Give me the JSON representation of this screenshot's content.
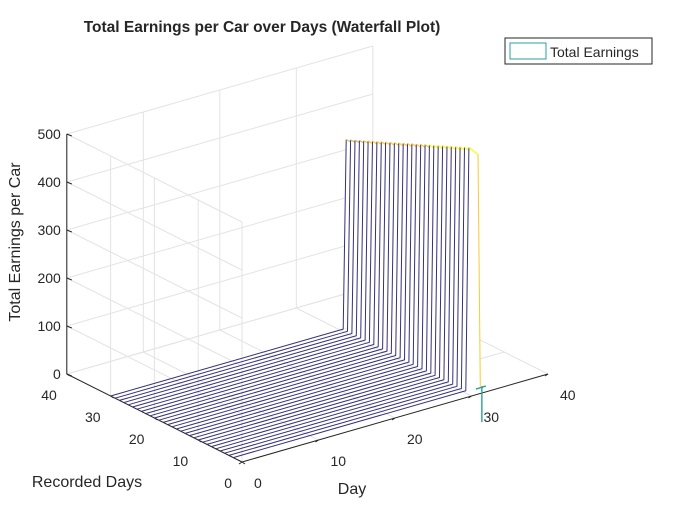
{
  "chart_data": {
    "type": "waterfall",
    "title": "Total Earnings per Car over Days (Waterfall Plot)",
    "xlabel": "Day",
    "ylabel": "Recorded Days",
    "zlabel": "Total Earnings per Car",
    "xticks": [
      "0",
      "10",
      "20",
      "30",
      "40"
    ],
    "yticks": [
      "0",
      "10",
      "20",
      "30",
      "40"
    ],
    "zticks": [
      "0",
      "100",
      "200",
      "300",
      "400",
      "500"
    ],
    "xlim": [
      0,
      40
    ],
    "ylim": [
      0,
      40
    ],
    "zlim": [
      0,
      500
    ],
    "legend": {
      "entries": [
        "Total Earnings"
      ],
      "location": "top-right"
    },
    "grid": true,
    "colormap": [
      "#352a87",
      "#0f5cdd",
      "#1481d6",
      "#06a4ca",
      "#2eb7a4",
      "#87bf77",
      "#d1bb59",
      "#fec832",
      "#f9fb0e"
    ],
    "series": {
      "recorded_days": [
        2,
        3,
        4,
        5,
        6,
        7,
        8,
        9,
        10,
        11,
        12,
        13,
        14,
        15,
        16,
        17,
        18,
        19,
        20,
        21,
        22,
        23,
        24,
        25,
        26,
        27,
        28,
        29,
        30
      ],
      "earnings_nonzero_from_day": 31,
      "earnings_last_day": 32,
      "earnings_by_recorded_day": [
        505,
        501,
        497,
        493,
        489,
        485,
        481,
        477,
        473,
        469,
        465,
        461,
        457,
        453,
        449,
        445,
        441,
        437,
        433,
        429,
        425,
        421,
        417,
        413,
        409,
        405,
        401,
        397,
        393
      ]
    }
  }
}
